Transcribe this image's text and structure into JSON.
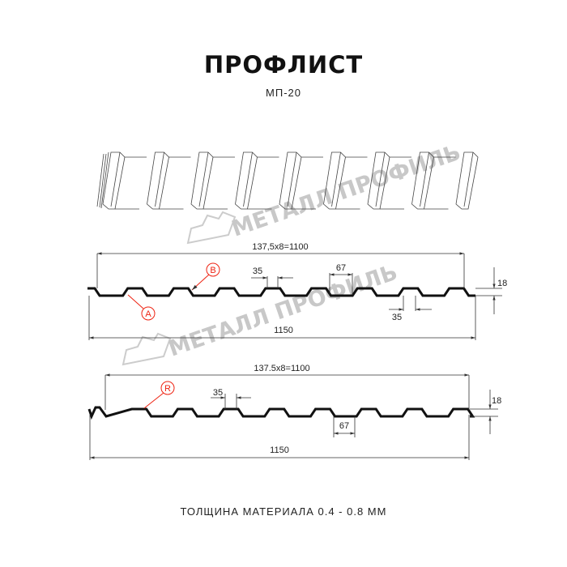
{
  "title": "ПРОФЛИСТ",
  "subtitle": "МП-20",
  "watermark": "МЕТАЛЛ ПРОФИЛЬ",
  "profile_a": {
    "pitch_label": "137,5x8=1100",
    "width_label": "1150",
    "top_rib_label": "35",
    "bottom_rib_label": "35",
    "trough_label": "67",
    "height_label": "18",
    "markers": [
      "B",
      "A"
    ]
  },
  "profile_r": {
    "pitch_label": "137.5x8=1100",
    "width_label": "1150",
    "top_rib_label": "35",
    "trough_label": "67",
    "height_label": "18",
    "marker": "R"
  },
  "footer": "ТОЛЩИНА МАТЕРИАЛА 0.4 - 0.8 ММ",
  "colors": {
    "marker": "#e21",
    "line": "#111",
    "watermark": "#c8c8c8"
  }
}
